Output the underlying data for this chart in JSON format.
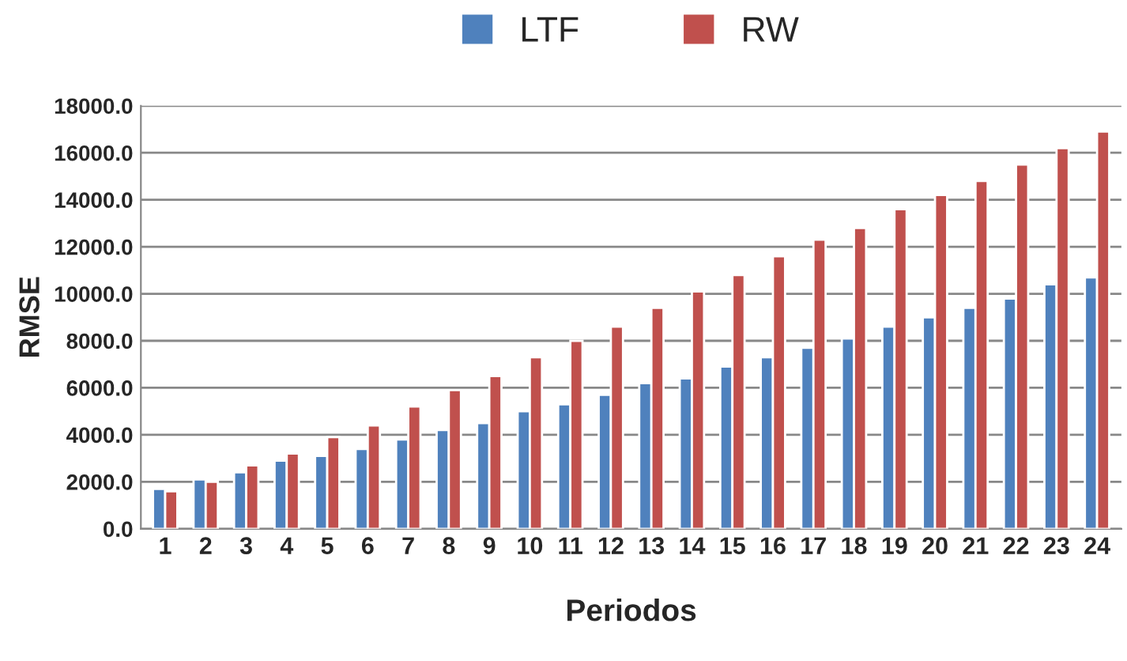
{
  "chart_data": {
    "type": "bar",
    "xlabel": "Periodos",
    "ylabel": "RMSE",
    "categories": [
      "1",
      "2",
      "3",
      "4",
      "5",
      "6",
      "7",
      "8",
      "9",
      "10",
      "11",
      "12",
      "13",
      "14",
      "15",
      "16",
      "17",
      "18",
      "19",
      "20",
      "21",
      "22",
      "23",
      "24"
    ],
    "series": [
      {
        "name": "LTF",
        "color": "#4f81bd",
        "values": [
          1700,
          2100,
          2400,
          2900,
          3100,
          3400,
          3800,
          4200,
          4500,
          5000,
          5300,
          5700,
          6200,
          6400,
          6900,
          7300,
          7700,
          8100,
          8600,
          9000,
          9400,
          9800,
          10400,
          10700
        ]
      },
      {
        "name": "RW",
        "color": "#c0504d",
        "values": [
          1600,
          2000,
          2700,
          3200,
          3900,
          4400,
          5200,
          5900,
          6500,
          7300,
          8000,
          8600,
          9400,
          10100,
          10800,
          11600,
          12300,
          12800,
          13600,
          14200,
          14800,
          15500,
          16200,
          16900
        ]
      }
    ],
    "ylim": [
      0,
      18000
    ],
    "yticks": [
      {
        "value": 0,
        "label": "0.0"
      },
      {
        "value": 2000,
        "label": "2000.0"
      },
      {
        "value": 4000,
        "label": "4000.0"
      },
      {
        "value": 6000,
        "label": "6000.0"
      },
      {
        "value": 8000,
        "label": "8000.0"
      },
      {
        "value": 10000,
        "label": "10000.0"
      },
      {
        "value": 12000,
        "label": "12000.0"
      },
      {
        "value": 14000,
        "label": "14000.0"
      },
      {
        "value": 16000,
        "label": "16000.0"
      },
      {
        "value": 18000,
        "label": "18000.0"
      }
    ],
    "grid": "y",
    "legend": "top"
  }
}
